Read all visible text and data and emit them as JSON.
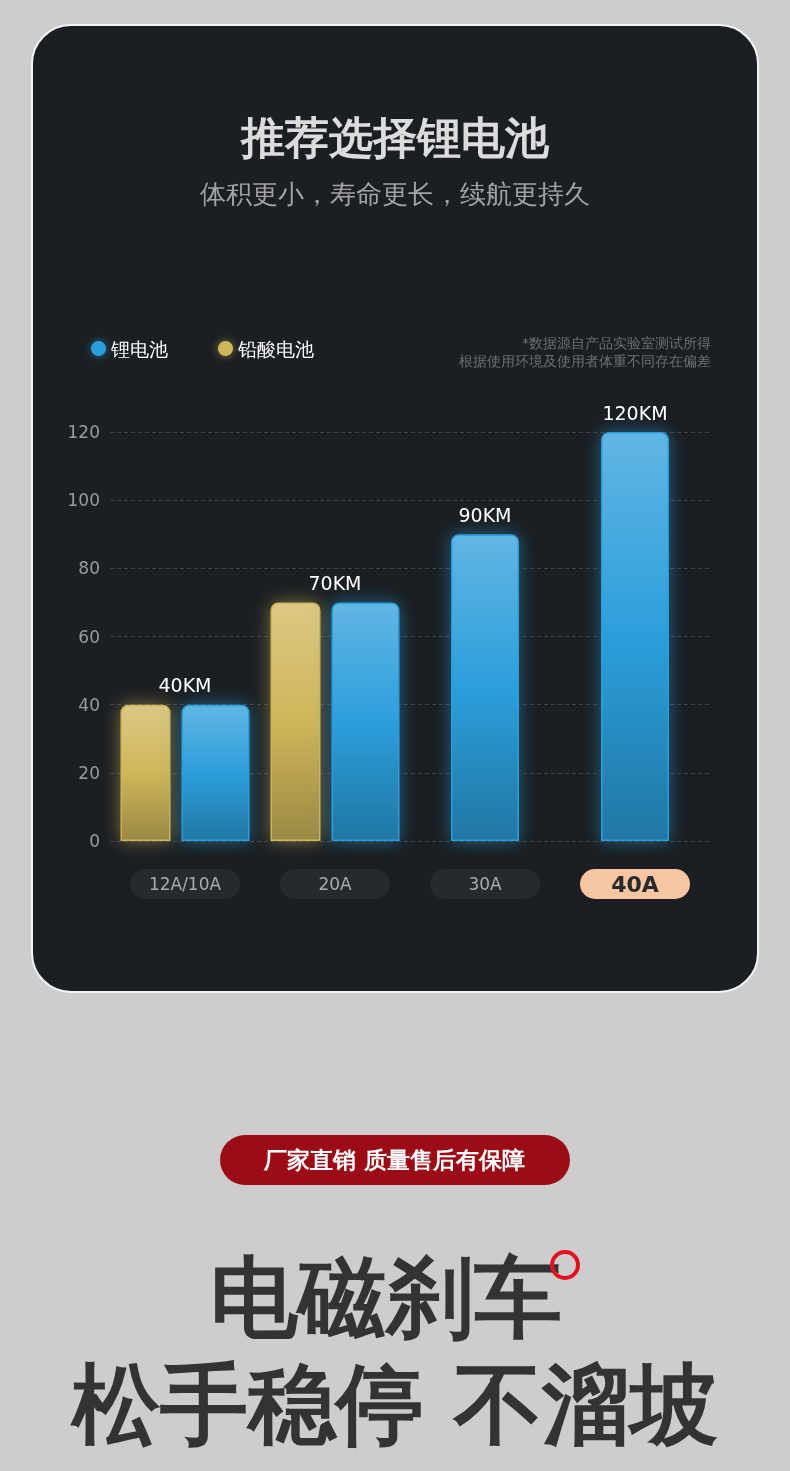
{
  "chart_data": {
    "type": "bar",
    "title": "推荐选择锂电池",
    "subtitle": "体积更小，寿命更长，续航更持久",
    "categories": [
      "12A/10A",
      "20A",
      "30A",
      "40A"
    ],
    "series": [
      {
        "name": "铅酸电池",
        "color": "#cfb65a",
        "values": [
          40,
          70,
          null,
          null
        ]
      },
      {
        "name": "锂电池",
        "color": "#2c9edb",
        "values": [
          40,
          70,
          90,
          120
        ],
        "value_labels": [
          "40KM",
          "70KM",
          "90KM",
          "120KM"
        ]
      }
    ],
    "ylim": [
      0,
      120
    ],
    "yticks": [
      0,
      20,
      40,
      60,
      80,
      100,
      120
    ],
    "grid": "y",
    "legend": "top left",
    "annotations": [
      "*数据源自产品实验室测试所得",
      "根据使用环境及使用者体重不同存在偏差",
      "厂家直销 质量售后有保障",
      "电磁刹车",
      "松手稳停 不溜坡"
    ]
  }
}
